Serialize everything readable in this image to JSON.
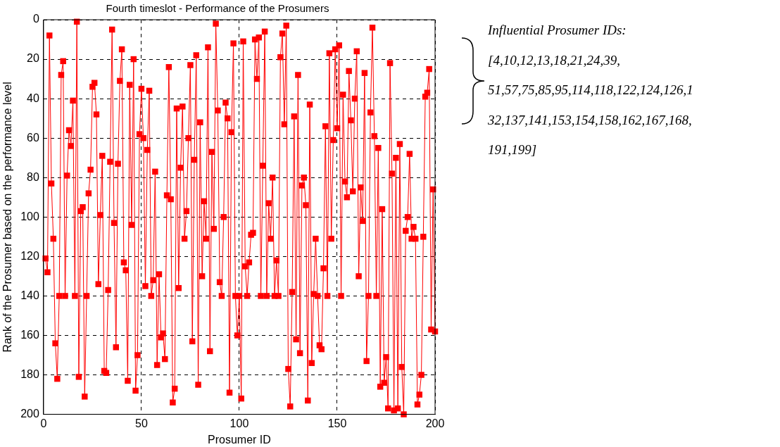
{
  "chart_data": {
    "type": "line",
    "title": "Fourth timeslot - Performance of the Prosumers",
    "xlabel": "Prosumer ID",
    "ylabel": "Rank of the Prosumer based on the performance level",
    "x": [
      1,
      2,
      3,
      4,
      5,
      6,
      7,
      8,
      9,
      10,
      11,
      12,
      13,
      14,
      15,
      16,
      17,
      18,
      19,
      20,
      21,
      22,
      23,
      24,
      25,
      26,
      27,
      28,
      29,
      30,
      31,
      32,
      33,
      34,
      35,
      36,
      37,
      38,
      39,
      40,
      41,
      42,
      43,
      44,
      45,
      46,
      47,
      48,
      49,
      50,
      51,
      52,
      53,
      54,
      55,
      56,
      57,
      58,
      59,
      60,
      61,
      62,
      63,
      64,
      65,
      66,
      67,
      68,
      69,
      70,
      71,
      72,
      73,
      74,
      75,
      76,
      77,
      78,
      79,
      80,
      81,
      82,
      83,
      84,
      85,
      86,
      87,
      88,
      89,
      90,
      91,
      92,
      93,
      94,
      95,
      96,
      97,
      98,
      99,
      100,
      101,
      102,
      103,
      104,
      105,
      106,
      107,
      108,
      109,
      110,
      111,
      112,
      113,
      114,
      115,
      116,
      117,
      118,
      119,
      120,
      121,
      122,
      123,
      124,
      125,
      126,
      127,
      128,
      129,
      130,
      131,
      132,
      133,
      134,
      135,
      136,
      137,
      138,
      139,
      140,
      141,
      142,
      143,
      144,
      145,
      146,
      147,
      148,
      149,
      150,
      151,
      152,
      153,
      154,
      155,
      156,
      157,
      158,
      159,
      160,
      161,
      162,
      163,
      164,
      165,
      166,
      167,
      168,
      169,
      170,
      171,
      172,
      173,
      174,
      175,
      176,
      177,
      178,
      179,
      180,
      181,
      182,
      183,
      184,
      185,
      186,
      187,
      188,
      189,
      190,
      191,
      192,
      193,
      194,
      195,
      196,
      197,
      198,
      199,
      200
    ],
    "values": [
      121,
      128,
      8,
      83,
      111,
      164,
      182,
      140,
      28,
      21,
      140,
      79,
      56,
      64,
      41,
      140,
      1,
      181,
      97,
      95,
      191,
      140,
      88,
      76,
      34,
      32,
      48,
      134,
      99,
      69,
      178,
      179,
      137,
      72,
      5,
      103,
      166,
      73,
      31,
      15,
      123,
      127,
      183,
      33,
      104,
      20,
      188,
      170,
      58,
      35,
      60,
      135,
      66,
      36,
      140,
      132,
      77,
      175,
      129,
      161,
      159,
      172,
      89,
      24,
      91,
      194,
      187,
      45,
      136,
      75,
      44,
      111,
      97,
      60,
      23,
      163,
      71,
      18,
      185,
      52,
      130,
      92,
      111,
      14,
      168,
      67,
      106,
      2,
      46,
      133,
      140,
      100,
      42,
      50,
      189,
      57,
      12,
      140,
      160,
      140,
      192,
      11,
      125,
      140,
      123,
      109,
      108,
      10,
      30,
      9,
      140,
      74,
      6,
      140,
      93,
      111,
      80,
      140,
      122,
      140,
      19,
      7,
      53,
      3,
      177,
      196,
      138,
      49,
      162,
      28,
      169,
      84,
      80,
      94,
      193,
      43,
      174,
      139,
      111,
      140,
      165,
      167,
      126,
      54,
      140,
      17,
      111,
      61,
      15,
      55,
      13,
      140,
      38,
      82,
      90,
      26,
      51,
      87,
      40,
      16,
      130,
      85,
      102,
      27,
      173,
      140,
      47,
      4,
      59,
      140,
      65,
      186,
      96,
      184,
      171,
      197,
      22,
      78,
      198,
      70,
      197,
      63,
      176,
      200,
      107,
      100,
      68,
      111,
      105,
      111,
      195,
      190,
      180,
      110,
      39,
      37,
      25,
      157,
      86,
      158
    ],
    "color": "#ff0000",
    "marker": "square",
    "line_style": "solid",
    "grid": true,
    "xlim": [
      0,
      200
    ],
    "xticks": [
      0,
      50,
      100,
      150,
      200
    ],
    "ylim": [
      200,
      0
    ],
    "yticks": [
      0,
      20,
      40,
      60,
      80,
      100,
      120,
      140,
      160,
      180,
      200
    ],
    "annotations": [
      "Influential Prosumer IDs:",
      "[4,10,12,13,18,21,24,39,",
      "51,57,75,85,95,114,118,122,124,126,1",
      "32,137,141,153,154,158,162,167,168,",
      "191,199]"
    ]
  }
}
